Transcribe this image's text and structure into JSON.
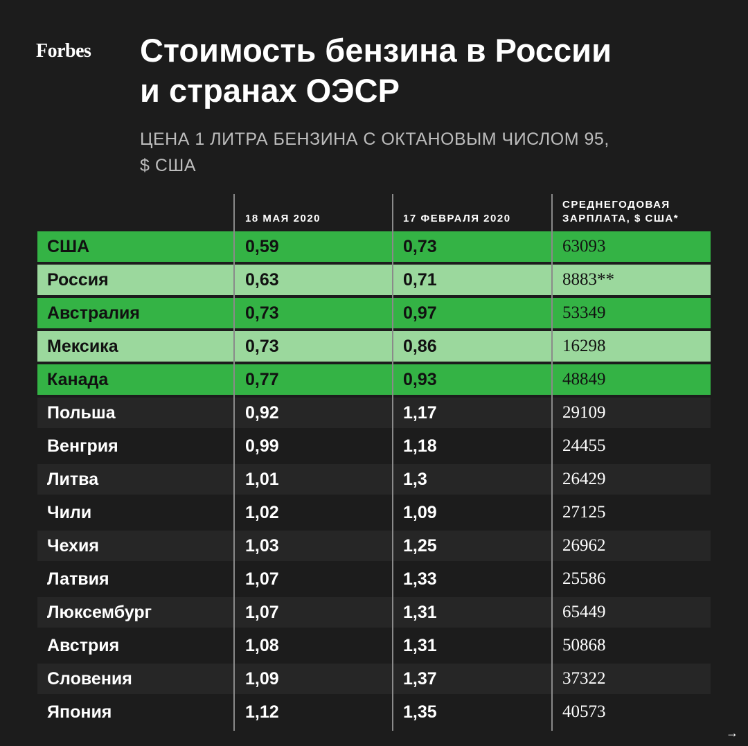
{
  "brand": "Forbes",
  "title_line1": "Стоимость бензина в России",
  "title_line2": "и странах ОЭСР",
  "subtitle_line1": "ЦЕНА 1 ЛИТРА БЕНЗИНА С ОКТАНОВЫМ ЧИСЛОМ 95,",
  "subtitle_line2": "$ США",
  "colors": {
    "green": "#34b345",
    "light_green": "#9bd89d",
    "background": "#1c1c1c",
    "row_shade": "#262626",
    "text_dark": "#111111",
    "text_light": "#ffffff"
  },
  "chart_data": {
    "type": "table",
    "columns": [
      "",
      "18 МАЯ 2020",
      "17 ФЕВРАЛЯ 2020",
      "СРЕДНЕГОДОВАЯ ЗАРПЛАТА, $ США*"
    ],
    "header_salary_line1": "СРЕДНЕГОДОВАЯ",
    "header_salary_line2": "ЗАРПЛАТА, $ США*",
    "rows": [
      {
        "country": "США",
        "may": "0,59",
        "feb": "0,73",
        "salary": "63093",
        "highlight": "green"
      },
      {
        "country": "Россия",
        "may": "0,63",
        "feb": "0,71",
        "salary": "8883**",
        "highlight": "light"
      },
      {
        "country": "Австралия",
        "may": "0,73",
        "feb": "0,97",
        "salary": "53349",
        "highlight": "green"
      },
      {
        "country": "Мексика",
        "may": "0,73",
        "feb": "0,86",
        "salary": "16298",
        "highlight": "light"
      },
      {
        "country": "Канада",
        "may": "0,77",
        "feb": "0,93",
        "salary": "48849",
        "highlight": "green"
      },
      {
        "country": "Польша",
        "may": "0,92",
        "feb": "1,17",
        "salary": "29109",
        "highlight": "none"
      },
      {
        "country": "Венгрия",
        "may": "0,99",
        "feb": "1,18",
        "salary": "24455",
        "highlight": "none"
      },
      {
        "country": "Литва",
        "may": "1,01",
        "feb": "1,3",
        "salary": "26429",
        "highlight": "none"
      },
      {
        "country": "Чили",
        "may": "1,02",
        "feb": "1,09",
        "salary": "27125",
        "highlight": "none"
      },
      {
        "country": "Чехия",
        "may": "1,03",
        "feb": "1,25",
        "salary": "26962",
        "highlight": "none"
      },
      {
        "country": "Латвия",
        "may": "1,07",
        "feb": "1,33",
        "salary": "25586",
        "highlight": "none"
      },
      {
        "country": "Люксембург",
        "may": "1,07",
        "feb": "1,31",
        "salary": "65449",
        "highlight": "none"
      },
      {
        "country": "Австрия",
        "may": "1,08",
        "feb": "1,31",
        "salary": "50868",
        "highlight": "none"
      },
      {
        "country": "Словения",
        "may": "1,09",
        "feb": "1,37",
        "salary": "37322",
        "highlight": "none"
      },
      {
        "country": "Япония",
        "may": "1,12",
        "feb": "1,35",
        "salary": "40573",
        "highlight": "none"
      }
    ]
  },
  "next_arrow": "→"
}
